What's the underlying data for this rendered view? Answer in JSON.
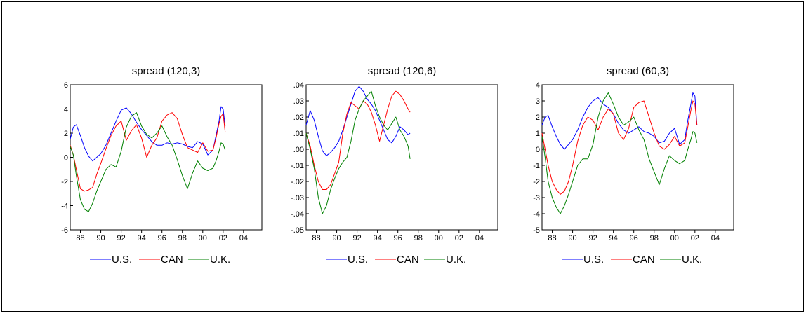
{
  "chart_data": [
    {
      "type": "line",
      "title": "spread (120,3)",
      "xlabel": "",
      "ylabel": "",
      "xlim": [
        1987.0,
        2005.8
      ],
      "ylim": [
        -6,
        6
      ],
      "x_tick_labels": [
        "88",
        "90",
        "92",
        "94",
        "96",
        "98",
        "00",
        "02",
        "04"
      ],
      "x_tick_values": [
        1988,
        1990,
        1992,
        1994,
        1996,
        1998,
        2000,
        2002,
        2004
      ],
      "y_tick_labels": [
        "-6",
        "-4",
        "-2",
        "0",
        "2",
        "4",
        "6"
      ],
      "y_tick_values": [
        -6,
        -4,
        -2,
        0,
        2,
        4,
        6
      ],
      "legend_placement": "bottom",
      "series": [
        {
          "name": "U.S.",
          "color": "#0000ff",
          "x": [
            1987.0,
            1987.3,
            1987.6,
            1988.0,
            1988.4,
            1988.8,
            1989.2,
            1989.6,
            1990.0,
            1990.5,
            1991.0,
            1991.5,
            1992.0,
            1992.5,
            1993.0,
            1993.5,
            1994.0,
            1994.5,
            1995.0,
            1995.5,
            1996.0,
            1996.5,
            1997.0,
            1997.5,
            1998.0,
            1998.5,
            1999.0,
            1999.5,
            2000.0,
            2000.5,
            2001.0,
            2001.3,
            2001.6,
            2001.8,
            2002.0,
            2002.2
          ],
          "y": [
            1.5,
            2.5,
            2.7,
            1.8,
            0.8,
            0.1,
            -0.3,
            0.0,
            0.3,
            1.0,
            2.0,
            3.0,
            3.9,
            4.1,
            3.6,
            2.9,
            2.3,
            1.8,
            1.3,
            1.0,
            1.0,
            1.2,
            1.1,
            1.2,
            1.1,
            0.9,
            0.8,
            1.3,
            1.1,
            0.2,
            0.6,
            1.8,
            3.0,
            4.2,
            4.0,
            2.6
          ]
        },
        {
          "name": "CAN",
          "color": "#ff0000",
          "x": [
            1987.0,
            1987.3,
            1987.6,
            1988.0,
            1988.4,
            1988.8,
            1989.2,
            1989.6,
            1990.0,
            1990.5,
            1991.0,
            1991.5,
            1992.0,
            1992.5,
            1993.0,
            1993.5,
            1994.0,
            1994.5,
            1995.0,
            1995.5,
            1996.0,
            1996.5,
            1997.0,
            1997.5,
            1998.0,
            1998.5,
            1999.0,
            1999.5,
            2000.0,
            2000.5,
            2001.0,
            2001.3,
            2001.6,
            2001.8,
            2002.0,
            2002.2
          ],
          "y": [
            1.0,
            0.2,
            -1.0,
            -2.6,
            -2.8,
            -2.7,
            -2.5,
            -1.4,
            -0.5,
            0.7,
            1.8,
            2.6,
            3.0,
            1.4,
            2.2,
            2.7,
            1.6,
            0.0,
            1.0,
            1.6,
            3.0,
            3.5,
            3.7,
            3.2,
            1.9,
            0.8,
            0.6,
            0.4,
            1.2,
            0.5,
            0.6,
            1.6,
            2.8,
            3.4,
            3.6,
            2.1
          ]
        },
        {
          "name": "U.K.",
          "color": "#008000",
          "x": [
            1987.0,
            1987.3,
            1987.6,
            1988.0,
            1988.4,
            1988.8,
            1989.2,
            1989.6,
            1990.0,
            1990.5,
            1991.0,
            1991.5,
            1992.0,
            1992.5,
            1993.0,
            1993.5,
            1994.0,
            1994.5,
            1995.0,
            1995.5,
            1996.0,
            1996.5,
            1997.0,
            1997.5,
            1998.0,
            1998.5,
            1999.0,
            1999.5,
            2000.0,
            2000.5,
            2001.0,
            2001.3,
            2001.6,
            2001.8,
            2002.0,
            2002.2
          ],
          "y": [
            0.9,
            0.2,
            -1.5,
            -3.5,
            -4.3,
            -4.5,
            -3.8,
            -2.8,
            -2.0,
            -1.0,
            -0.6,
            -0.8,
            0.5,
            2.5,
            3.4,
            3.7,
            2.6,
            1.9,
            1.6,
            2.0,
            2.6,
            1.7,
            1.0,
            -0.2,
            -1.5,
            -2.6,
            -1.3,
            -0.3,
            -0.9,
            -1.1,
            -0.9,
            -0.3,
            0.5,
            1.2,
            1.1,
            0.6
          ]
        }
      ]
    },
    {
      "type": "line",
      "title": "spread (120,6)",
      "xlabel": "",
      "ylabel": "",
      "xlim": [
        1987.0,
        2005.8
      ],
      "ylim": [
        -0.05,
        0.04
      ],
      "x_tick_labels": [
        "88",
        "90",
        "92",
        "94",
        "96",
        "98",
        "00",
        "02",
        "04"
      ],
      "x_tick_values": [
        1988,
        1990,
        1992,
        1994,
        1996,
        1998,
        2000,
        2002,
        2004
      ],
      "y_tick_labels": [
        "-.05",
        "-.04",
        "-.03",
        "-.02",
        "-.01",
        ".00",
        ".01",
        ".02",
        ".03",
        ".04"
      ],
      "y_tick_values": [
        -0.05,
        -0.04,
        -0.03,
        -0.02,
        -0.01,
        0.0,
        0.01,
        0.02,
        0.03,
        0.04
      ],
      "legend_placement": "bottom",
      "series": [
        {
          "name": "U.S.",
          "color": "#0000ff",
          "x": [
            1987.0,
            1987.4,
            1987.8,
            1988.2,
            1988.6,
            1989.0,
            1989.4,
            1989.8,
            1990.2,
            1990.6,
            1991.0,
            1991.4,
            1991.8,
            1992.2,
            1992.6,
            1993.0,
            1993.4,
            1993.8,
            1994.2,
            1994.6,
            1995.0,
            1995.4,
            1995.8,
            1996.2,
            1996.6,
            1997.0,
            1997.2
          ],
          "y": [
            0.015,
            0.024,
            0.018,
            0.008,
            -0.001,
            -0.004,
            -0.002,
            0.001,
            0.005,
            0.012,
            0.02,
            0.028,
            0.036,
            0.039,
            0.036,
            0.031,
            0.028,
            0.024,
            0.018,
            0.012,
            0.006,
            0.004,
            0.008,
            0.014,
            0.012,
            0.009,
            0.01
          ]
        },
        {
          "name": "CAN",
          "color": "#ff0000",
          "x": [
            1987.0,
            1987.4,
            1987.8,
            1988.2,
            1988.6,
            1989.0,
            1989.4,
            1989.8,
            1990.2,
            1990.6,
            1991.0,
            1991.4,
            1991.8,
            1992.2,
            1992.6,
            1993.0,
            1993.4,
            1993.8,
            1994.2,
            1994.6,
            1995.0,
            1995.4,
            1995.8,
            1996.2,
            1996.6,
            1997.0,
            1997.2
          ],
          "y": [
            0.01,
            0.002,
            -0.01,
            -0.02,
            -0.025,
            -0.025,
            -0.022,
            -0.015,
            -0.008,
            0.01,
            0.022,
            0.029,
            0.027,
            0.025,
            0.03,
            0.028,
            0.023,
            0.015,
            0.005,
            0.015,
            0.025,
            0.033,
            0.036,
            0.034,
            0.03,
            0.025,
            0.023
          ]
        },
        {
          "name": "U.K.",
          "color": "#008000",
          "x": [
            1987.0,
            1987.4,
            1987.8,
            1988.2,
            1988.6,
            1989.0,
            1989.4,
            1989.8,
            1990.2,
            1990.6,
            1991.0,
            1991.4,
            1991.8,
            1992.2,
            1992.6,
            1993.0,
            1993.4,
            1993.8,
            1994.2,
            1994.6,
            1995.0,
            1995.4,
            1995.8,
            1996.2,
            1996.6,
            1997.0,
            1997.2
          ],
          "y": [
            0.01,
            0.0,
            -0.012,
            -0.03,
            -0.04,
            -0.035,
            -0.025,
            -0.018,
            -0.012,
            -0.008,
            -0.005,
            0.005,
            0.018,
            0.025,
            0.03,
            0.033,
            0.036,
            0.027,
            0.02,
            0.015,
            0.012,
            0.016,
            0.02,
            0.012,
            0.008,
            0.002,
            -0.006
          ]
        }
      ]
    },
    {
      "type": "line",
      "title": "spread (60,3)",
      "xlabel": "",
      "ylabel": "",
      "xlim": [
        1987.0,
        2005.8
      ],
      "ylim": [
        -5,
        4
      ],
      "x_tick_labels": [
        "88",
        "90",
        "92",
        "94",
        "96",
        "98",
        "00",
        "02",
        "04"
      ],
      "x_tick_values": [
        1988,
        1990,
        1992,
        1994,
        1996,
        1998,
        2000,
        2002,
        2004
      ],
      "y_tick_labels": [
        "-5",
        "-4",
        "-3",
        "-2",
        "-1",
        "0",
        "1",
        "2",
        "3",
        "4"
      ],
      "y_tick_values": [
        -5,
        -4,
        -3,
        -2,
        -1,
        0,
        1,
        2,
        3,
        4
      ],
      "legend_placement": "bottom",
      "series": [
        {
          "name": "U.S.",
          "color": "#0000ff",
          "x": [
            1987.0,
            1987.3,
            1987.6,
            1988.0,
            1988.4,
            1988.8,
            1989.2,
            1989.6,
            1990.0,
            1990.5,
            1991.0,
            1991.5,
            1992.0,
            1992.5,
            1993.0,
            1993.5,
            1994.0,
            1994.5,
            1995.0,
            1995.5,
            1996.0,
            1996.5,
            1997.0,
            1997.5,
            1998.0,
            1998.5,
            1999.0,
            1999.5,
            2000.0,
            2000.5,
            2001.0,
            2001.3,
            2001.6,
            2001.8,
            2002.0,
            2002.2
          ],
          "y": [
            1.5,
            2.0,
            2.1,
            1.4,
            0.8,
            0.3,
            0.0,
            0.3,
            0.6,
            1.2,
            2.0,
            2.6,
            3.0,
            3.2,
            2.8,
            2.6,
            2.2,
            1.6,
            1.2,
            1.0,
            1.2,
            1.4,
            1.1,
            1.0,
            0.8,
            0.4,
            0.5,
            1.0,
            1.3,
            0.3,
            0.6,
            1.8,
            2.8,
            3.5,
            3.3,
            1.5
          ]
        },
        {
          "name": "CAN",
          "color": "#ff0000",
          "x": [
            1987.0,
            1987.3,
            1987.6,
            1988.0,
            1988.4,
            1988.8,
            1989.2,
            1989.6,
            1990.0,
            1990.5,
            1991.0,
            1991.5,
            1992.0,
            1992.5,
            1993.0,
            1993.5,
            1994.0,
            1994.5,
            1995.0,
            1995.5,
            1996.0,
            1996.5,
            1997.0,
            1997.5,
            1998.0,
            1998.5,
            1999.0,
            1999.5,
            2000.0,
            2000.5,
            2001.0,
            2001.3,
            2001.6,
            2001.8,
            2002.0,
            2002.2
          ],
          "y": [
            1.0,
            0.0,
            -1.0,
            -2.0,
            -2.5,
            -2.8,
            -2.6,
            -2.0,
            -1.0,
            0.5,
            1.5,
            2.0,
            1.8,
            1.2,
            2.0,
            2.5,
            2.2,
            1.0,
            0.6,
            1.3,
            2.6,
            2.9,
            3.0,
            2.0,
            1.0,
            0.2,
            0.0,
            0.3,
            0.8,
            0.2,
            0.4,
            1.4,
            2.4,
            3.0,
            2.8,
            1.5
          ]
        },
        {
          "name": "U.K.",
          "color": "#008000",
          "x": [
            1987.0,
            1987.3,
            1987.6,
            1988.0,
            1988.4,
            1988.8,
            1989.2,
            1989.6,
            1990.0,
            1990.5,
            1991.0,
            1991.5,
            1992.0,
            1992.5,
            1993.0,
            1993.5,
            1994.0,
            1994.5,
            1995.0,
            1995.5,
            1996.0,
            1996.5,
            1997.0,
            1997.5,
            1998.0,
            1998.5,
            1999.0,
            1999.5,
            2000.0,
            2000.5,
            2001.0,
            2001.3,
            2001.6,
            2001.8,
            2002.0,
            2002.2
          ],
          "y": [
            0.8,
            -0.5,
            -2.0,
            -3.0,
            -3.6,
            -4.0,
            -3.5,
            -2.8,
            -2.0,
            -1.0,
            -0.6,
            -0.6,
            0.3,
            2.0,
            3.0,
            3.5,
            2.8,
            2.0,
            1.5,
            1.7,
            2.0,
            1.2,
            0.6,
            -0.6,
            -1.4,
            -2.2,
            -1.2,
            -0.4,
            -0.7,
            -0.9,
            -0.7,
            0.0,
            0.6,
            1.1,
            1.0,
            0.4
          ]
        }
      ]
    }
  ]
}
